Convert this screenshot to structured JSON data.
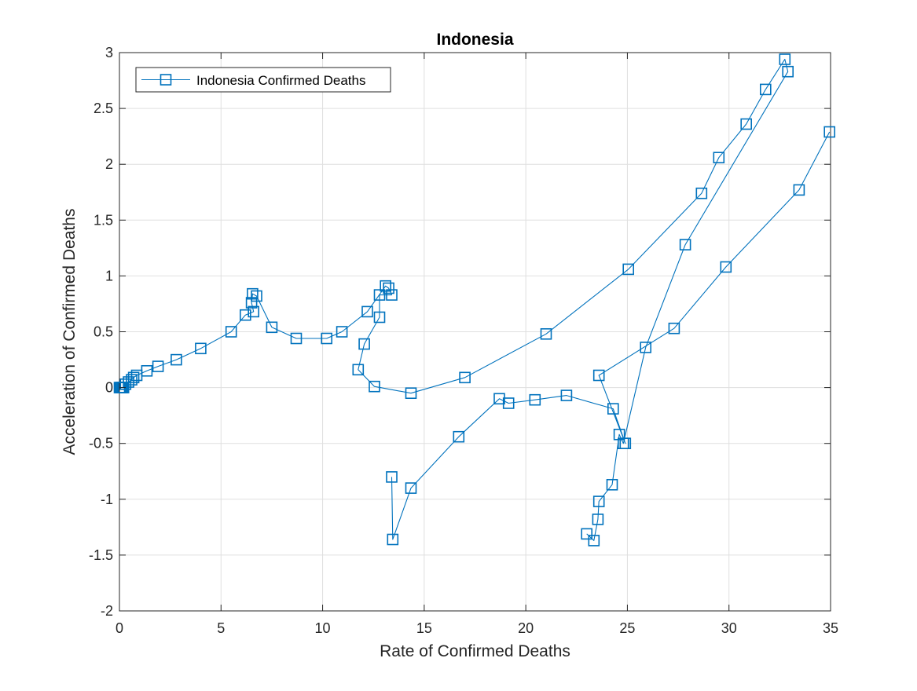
{
  "chart_data": {
    "type": "line",
    "title": "Indonesia",
    "xlabel": "Rate of Confirmed Deaths",
    "ylabel": "Acceleration of Confirmed Deaths",
    "xlim": [
      0,
      35
    ],
    "ylim": [
      -2,
      3
    ],
    "xticks": [
      0,
      5,
      10,
      15,
      20,
      25,
      30,
      35
    ],
    "yticks": [
      -2,
      -1.5,
      -1,
      -0.5,
      0,
      0.5,
      1,
      1.5,
      2,
      2.5,
      3
    ],
    "xtick_labels": [
      "0",
      "5",
      "10",
      "15",
      "20",
      "25",
      "30",
      "35"
    ],
    "ytick_labels": [
      "-2",
      "-1.5",
      "-1",
      "-0.5",
      "0",
      "0.5",
      "1",
      "1.5",
      "2",
      "2.5",
      "3"
    ],
    "grid": true,
    "legend_position": "top-left",
    "series": [
      {
        "name": "Indonesia Confirmed Deaths",
        "color": "#0072BD",
        "marker": "square",
        "x": [
          0.0,
          0.05,
          0.1,
          0.15,
          0.2,
          0.3,
          0.45,
          0.6,
          0.7,
          0.85,
          1.35,
          1.9,
          2.8,
          4.0,
          5.5,
          6.2,
          6.6,
          6.5,
          6.55,
          6.75,
          7.5,
          8.7,
          10.2,
          10.95,
          12.2,
          13.1,
          13.25,
          13.4,
          12.8,
          12.8,
          12.05,
          11.75,
          12.55,
          14.35,
          17.0,
          21.0,
          25.05,
          28.65,
          29.5,
          30.85,
          31.8,
          32.75,
          32.9,
          27.85,
          25.9,
          24.8,
          24.6,
          24.25,
          23.6,
          23.55,
          23.35,
          23.0
        ],
        "y": [
          0.0,
          0.0,
          0.0,
          0.0,
          0.0,
          0.03,
          0.05,
          0.07,
          0.09,
          0.11,
          0.15,
          0.19,
          0.25,
          0.35,
          0.5,
          0.65,
          0.68,
          0.76,
          0.84,
          0.82,
          0.54,
          0.44,
          0.44,
          0.5,
          0.68,
          0.91,
          0.89,
          0.83,
          0.83,
          0.63,
          0.39,
          0.16,
          0.01,
          -0.05,
          0.09,
          0.48,
          1.06,
          1.74,
          2.06,
          2.36,
          2.67,
          2.94,
          2.83,
          1.28,
          0.36,
          -0.5,
          -0.42,
          -0.87,
          -1.02,
          -1.18,
          -1.37,
          -1.31
        ],
        "x2": [
          13.4,
          13.45,
          14.35,
          16.7,
          18.7,
          19.15,
          20.45,
          22.0,
          24.3,
          24.9,
          23.6,
          27.3,
          29.85,
          33.45,
          34.95
        ],
        "y2": [
          -0.8,
          -1.36,
          -0.9,
          -0.44,
          -0.1,
          -0.14,
          -0.11,
          -0.07,
          -0.19,
          -0.5,
          0.11,
          0.53,
          1.08,
          1.77,
          2.29
        ]
      }
    ]
  }
}
